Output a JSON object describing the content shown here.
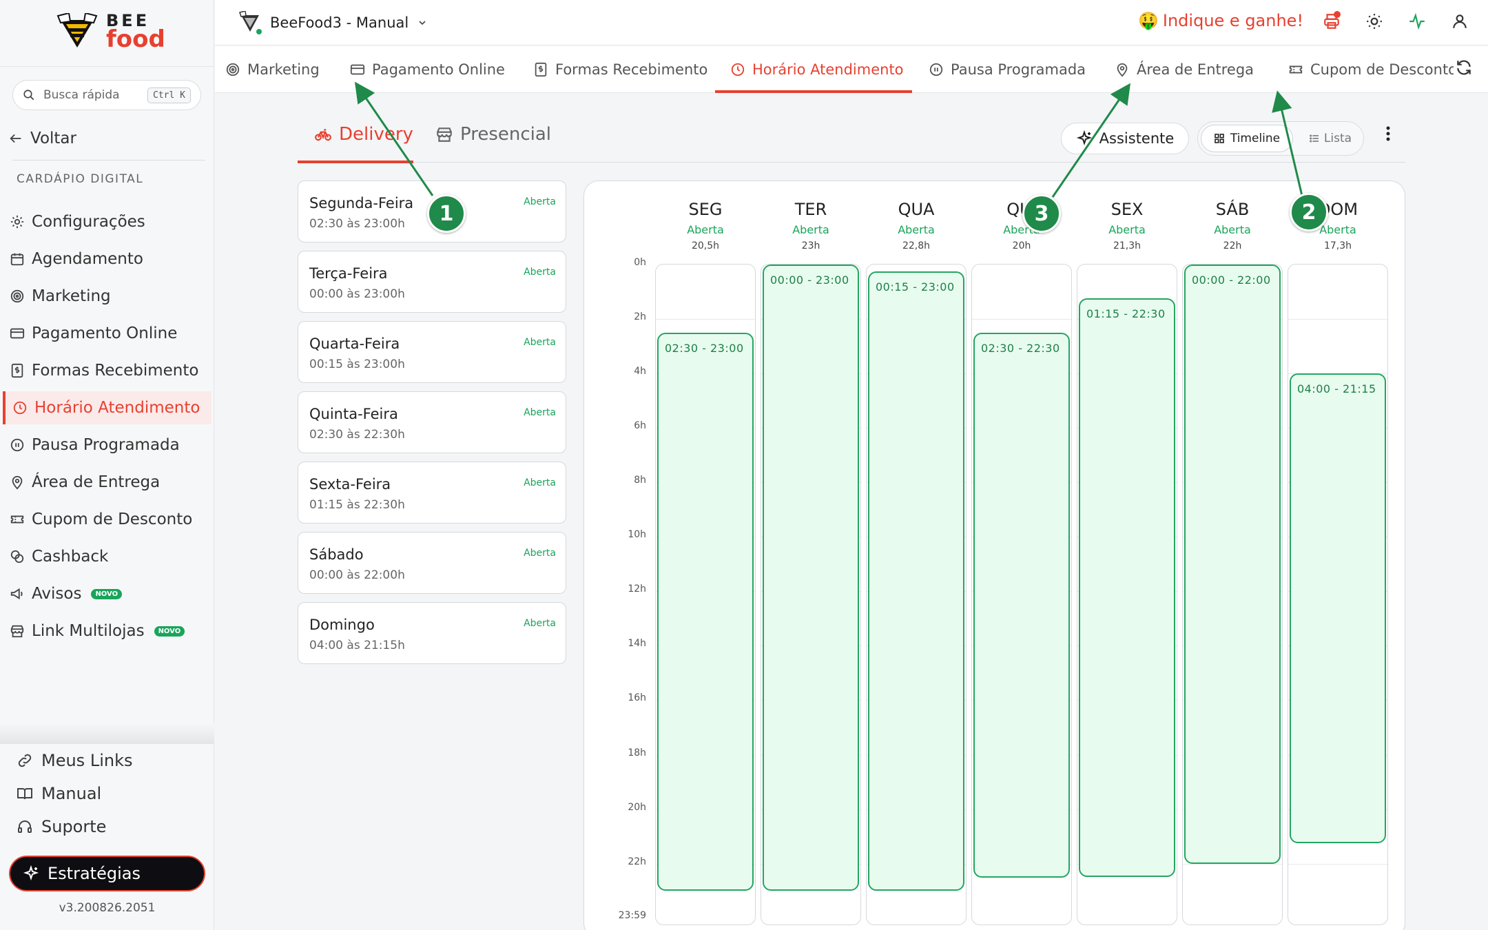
{
  "brand": {
    "line1": "BEE",
    "line2": "food"
  },
  "search": {
    "placeholder": "Busca rápida",
    "shortcut": "Ctrl K"
  },
  "sidebar": {
    "back": "Voltar",
    "section": "CARDÁPIO DIGITAL",
    "items": [
      {
        "label": "Configurações",
        "icon": "gear-icon"
      },
      {
        "label": "Agendamento",
        "icon": "calendar-icon"
      },
      {
        "label": "Marketing",
        "icon": "target-icon"
      },
      {
        "label": "Pagamento Online",
        "icon": "credit-card-icon"
      },
      {
        "label": "Formas Recebimento",
        "icon": "receipt-icon"
      },
      {
        "label": "Horário Atendimento",
        "icon": "clock-icon",
        "active": true
      },
      {
        "label": "Pausa Programada",
        "icon": "pause-icon"
      },
      {
        "label": "Área de Entrega",
        "icon": "map-pin-icon"
      },
      {
        "label": "Cupom de Desconto",
        "icon": "ticket-icon"
      },
      {
        "label": "Cashback",
        "icon": "cashback-icon"
      },
      {
        "label": "Avisos",
        "icon": "megaphone-icon",
        "badge": "NOVO"
      },
      {
        "label": "Link Multilojas",
        "icon": "store-icon",
        "badge": "NOVO"
      }
    ],
    "bottom": [
      {
        "label": "Meus Links",
        "icon": "link-icon"
      },
      {
        "label": "Manual",
        "icon": "book-icon"
      },
      {
        "label": "Suporte",
        "icon": "headset-icon"
      }
    ],
    "strategies": "Estratégias",
    "version": "v3.200826.2051"
  },
  "topbar": {
    "store": "BeeFood3 - Manual",
    "refer": "Indique e ganhe!",
    "refer_emoji": "🤑"
  },
  "tabs": [
    {
      "label": "Marketing"
    },
    {
      "label": "Pagamento Online"
    },
    {
      "label": "Formas Recebimento"
    },
    {
      "label": "Horário Atendimento",
      "active": true
    },
    {
      "label": "Pausa Programada"
    },
    {
      "label": "Área de Entrega"
    },
    {
      "label": "Cupom de Desconto"
    }
  ],
  "subtabs": {
    "delivery": "Delivery",
    "presencial": "Presencial"
  },
  "toolbar": {
    "assistant": "Assistente",
    "timeline": "Timeline",
    "list": "Lista"
  },
  "days": [
    {
      "name": "Segunda-Feira",
      "hours": "02:30 às 23:00h",
      "status": "Aberta"
    },
    {
      "name": "Terça-Feira",
      "hours": "00:00 às 23:00h",
      "status": "Aberta"
    },
    {
      "name": "Quarta-Feira",
      "hours": "00:15 às 23:00h",
      "status": "Aberta"
    },
    {
      "name": "Quinta-Feira",
      "hours": "02:30 às 22:30h",
      "status": "Aberta"
    },
    {
      "name": "Sexta-Feira",
      "hours": "01:15 às 22:30h",
      "status": "Aberta"
    },
    {
      "name": "Sábado",
      "hours": "00:00 às 22:00h",
      "status": "Aberta"
    },
    {
      "name": "Domingo",
      "hours": "04:00 às 21:15h",
      "status": "Aberta"
    }
  ],
  "timeline": {
    "y_labels": [
      "0h",
      "2h",
      "4h",
      "6h",
      "8h",
      "10h",
      "12h",
      "14h",
      "16h",
      "18h",
      "20h",
      "22h",
      "23:59"
    ],
    "columns": [
      {
        "day": "SEG",
        "status": "Aberta",
        "total": "20,5h",
        "range": "02:30 - 23:00",
        "start": 2.5,
        "end": 23.0
      },
      {
        "day": "TER",
        "status": "Aberta",
        "total": "23h",
        "range": "00:00 - 23:00",
        "start": 0.0,
        "end": 23.0
      },
      {
        "day": "QUA",
        "status": "Aberta",
        "total": "22,8h",
        "range": "00:15 - 23:00",
        "start": 0.25,
        "end": 23.0
      },
      {
        "day": "QUI",
        "status": "Aberta",
        "total": "20h",
        "range": "02:30 - 22:30",
        "start": 2.5,
        "end": 22.5
      },
      {
        "day": "SEX",
        "status": "Aberta",
        "total": "21,3h",
        "range": "01:15 - 22:30",
        "start": 1.25,
        "end": 22.5
      },
      {
        "day": "SÁB",
        "status": "Aberta",
        "total": "22h",
        "range": "00:00 - 22:00",
        "start": 0.0,
        "end": 22.0
      },
      {
        "day": "DOM",
        "status": "Aberta",
        "total": "17,3h",
        "range": "04:00 - 21:15",
        "start": 4.0,
        "end": 21.25
      }
    ]
  },
  "callouts": [
    "1",
    "2",
    "3"
  ],
  "colors": {
    "accent": "#e8402f",
    "green": "#18a55a",
    "callout": "#1f8a4a"
  }
}
